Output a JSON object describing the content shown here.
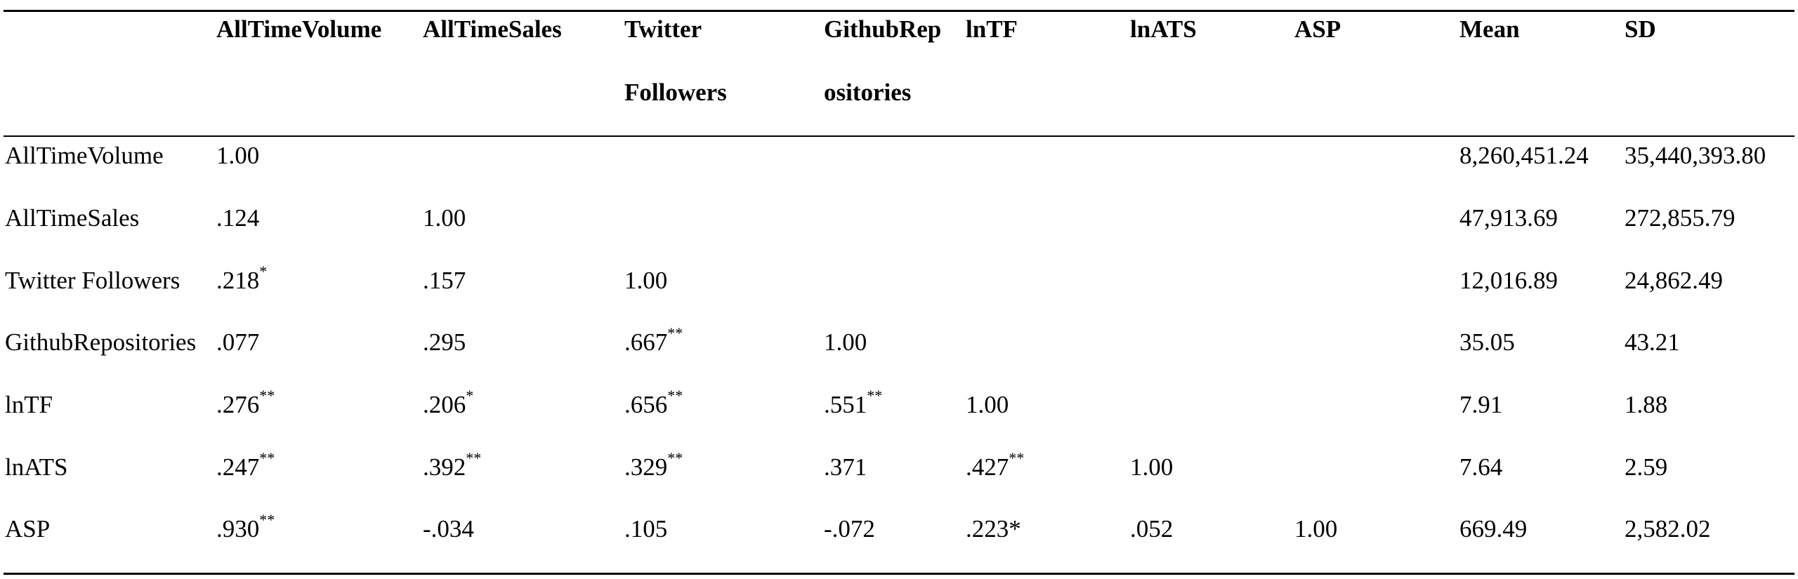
{
  "table": {
    "header_row1": [
      "AllTimeVolume",
      "AllTimeSales",
      "Twitter",
      "GithubRep",
      "lnTF",
      "lnATS",
      "ASP",
      "Mean",
      "SD"
    ],
    "header_row2": [
      "",
      "",
      "Followers",
      "ositories",
      "",
      "",
      "",
      "",
      ""
    ],
    "rows": [
      {
        "label": "AllTimeVolume",
        "cells": [
          {
            "v": "1.00",
            "sig": ""
          },
          {
            "v": "",
            "sig": ""
          },
          {
            "v": "",
            "sig": ""
          },
          {
            "v": "",
            "sig": ""
          },
          {
            "v": "",
            "sig": ""
          },
          {
            "v": "",
            "sig": ""
          },
          {
            "v": "",
            "sig": ""
          },
          {
            "v": "8,260,451.24",
            "sig": ""
          },
          {
            "v": "35,440,393.80",
            "sig": ""
          }
        ]
      },
      {
        "label": "AllTimeSales",
        "cells": [
          {
            "v": ".124",
            "sig": ""
          },
          {
            "v": "1.00",
            "sig": ""
          },
          {
            "v": "",
            "sig": ""
          },
          {
            "v": "",
            "sig": ""
          },
          {
            "v": "",
            "sig": ""
          },
          {
            "v": "",
            "sig": ""
          },
          {
            "v": "",
            "sig": ""
          },
          {
            "v": "47,913.69",
            "sig": ""
          },
          {
            "v": "272,855.79",
            "sig": ""
          }
        ]
      },
      {
        "label": "Twitter Followers",
        "cells": [
          {
            "v": ".218",
            "sig": "*"
          },
          {
            "v": ".157",
            "sig": ""
          },
          {
            "v": "1.00",
            "sig": ""
          },
          {
            "v": "",
            "sig": ""
          },
          {
            "v": "",
            "sig": ""
          },
          {
            "v": "",
            "sig": ""
          },
          {
            "v": "",
            "sig": ""
          },
          {
            "v": "12,016.89",
            "sig": ""
          },
          {
            "v": "24,862.49",
            "sig": ""
          }
        ]
      },
      {
        "label": "GithubRepositories",
        "cells": [
          {
            "v": ".077",
            "sig": ""
          },
          {
            "v": ".295",
            "sig": ""
          },
          {
            "v": ".667",
            "sig": "**"
          },
          {
            "v": "1.00",
            "sig": ""
          },
          {
            "v": "",
            "sig": ""
          },
          {
            "v": "",
            "sig": ""
          },
          {
            "v": "",
            "sig": ""
          },
          {
            "v": "35.05",
            "sig": ""
          },
          {
            "v": "43.21",
            "sig": ""
          }
        ]
      },
      {
        "label": "lnTF",
        "cells": [
          {
            "v": ".276",
            "sig": "**"
          },
          {
            "v": ".206",
            "sig": "*"
          },
          {
            "v": ".656",
            "sig": "**"
          },
          {
            "v": ".551",
            "sig": "**"
          },
          {
            "v": "1.00",
            "sig": ""
          },
          {
            "v": "",
            "sig": ""
          },
          {
            "v": "",
            "sig": ""
          },
          {
            "v": "7.91",
            "sig": ""
          },
          {
            "v": "1.88",
            "sig": ""
          }
        ]
      },
      {
        "label": "lnATS",
        "cells": [
          {
            "v": ".247",
            "sig": "**"
          },
          {
            "v": ".392",
            "sig": "**"
          },
          {
            "v": ".329",
            "sig": "**"
          },
          {
            "v": ".371",
            "sig": ""
          },
          {
            "v": ".427",
            "sig": "**"
          },
          {
            "v": "1.00",
            "sig": ""
          },
          {
            "v": "",
            "sig": ""
          },
          {
            "v": "7.64",
            "sig": ""
          },
          {
            "v": "2.59",
            "sig": ""
          }
        ]
      },
      {
        "label": "ASP",
        "cells": [
          {
            "v": ".930",
            "sig": "**"
          },
          {
            "v": "-.034",
            "sig": ""
          },
          {
            "v": ".105",
            "sig": ""
          },
          {
            "v": "-.072",
            "sig": ""
          },
          {
            "v": ".223*",
            "sig": ""
          },
          {
            "v": ".052",
            "sig": ""
          },
          {
            "v": "1.00",
            "sig": ""
          },
          {
            "v": "669.49",
            "sig": ""
          },
          {
            "v": "2,582.02",
            "sig": ""
          }
        ]
      }
    ]
  }
}
